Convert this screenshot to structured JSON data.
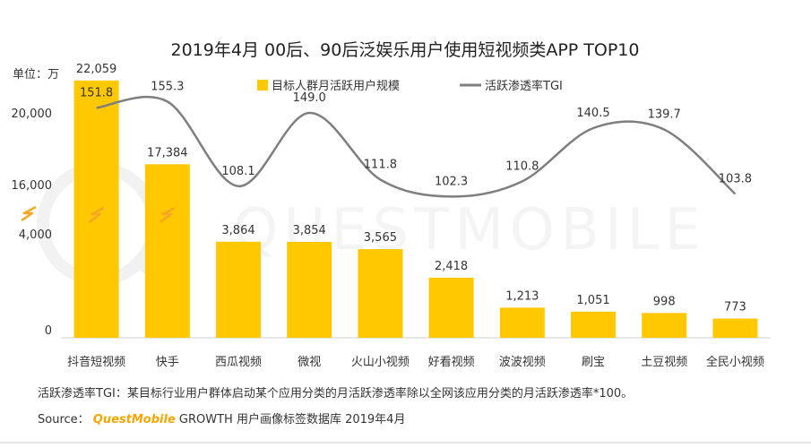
{
  "chart_data": {
    "type": "bar",
    "title": "2019年4月 00后、90后泛娱乐用户使用短视频类APP TOP10",
    "unit_label": "单位：万",
    "categories": [
      "抖音短视频",
      "快手",
      "西瓜视频",
      "微视",
      "火山小视频",
      "好看视频",
      "波波视频",
      "刷宝",
      "土豆视频",
      "全民小视频"
    ],
    "series": [
      {
        "name": "目标人群月活跃用户规模",
        "type": "bar",
        "color": "#FFC800",
        "values": [
          22059,
          17384,
          3864,
          3854,
          3565,
          2418,
          1213,
          1051,
          998,
          773
        ]
      },
      {
        "name": "活跃渗透率TGI",
        "type": "line",
        "color": "#7f7f7f",
        "values": [
          151.8,
          155.3,
          108.1,
          149.0,
          111.8,
          102.3,
          110.8,
          140.5,
          139.7,
          103.8
        ]
      }
    ],
    "bar_value_labels": [
      "22,059",
      "17,384",
      "3,864",
      "3,854",
      "3,565",
      "2,418",
      "1,213",
      "1,051",
      "998",
      "773"
    ],
    "line_value_labels": [
      "151.8",
      "155.3",
      "108.1",
      "149.0",
      "111.8",
      "102.3",
      "110.8",
      "140.5",
      "139.7",
      "103.8"
    ],
    "y_axis": {
      "ticks": [
        "20,000",
        "16,000",
        "4,000",
        "0"
      ],
      "broken": true
    },
    "legend_position": "top-center",
    "grid": false
  },
  "note": "活跃渗透率TGI：某目标行业用户群体启动某个应用分类的月活跃渗透率除以全网该应用分类的月活跃渗透率*100。",
  "source": {
    "label": "Source：",
    "brand": "QuestMobile",
    "text": "GROWTH 用户画像标签数据库 2019年4月"
  },
  "watermark": "QUESTMOBILE",
  "colors": {
    "bar": "#FFC800",
    "line": "#7f7f7f",
    "break_icon": "#F5A623"
  }
}
